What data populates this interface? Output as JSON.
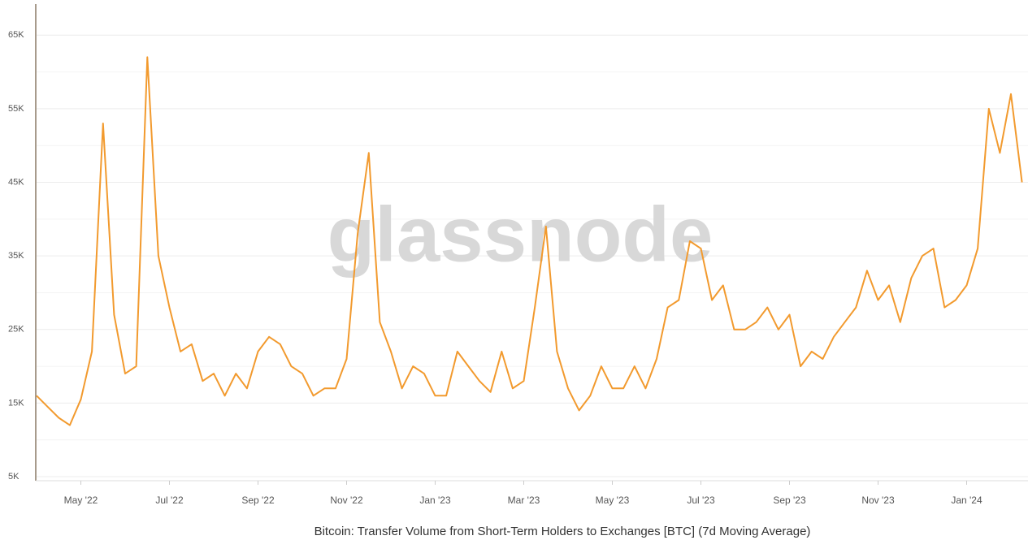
{
  "chart_data": {
    "type": "line",
    "title": "Bitcoin: Transfer Volume from Short-Term Holders to Exchanges [BTC] (7d Moving Average)",
    "watermark": "glassnode",
    "categories": [
      null,
      null,
      null,
      null,
      "May '22",
      null,
      null,
      null,
      null,
      null,
      null,
      null,
      "Jul '22",
      null,
      null,
      null,
      null,
      null,
      null,
      null,
      "Sep '22",
      null,
      null,
      null,
      null,
      null,
      null,
      null,
      "Nov '22",
      null,
      null,
      null,
      null,
      null,
      null,
      null,
      "Jan '23",
      null,
      null,
      null,
      null,
      null,
      null,
      null,
      "Mar '23",
      null,
      null,
      null,
      null,
      null,
      null,
      null,
      "May '23",
      null,
      null,
      null,
      null,
      null,
      null,
      null,
      "Jul '23",
      null,
      null,
      null,
      null,
      null,
      null,
      null,
      "Sep '23",
      null,
      null,
      null,
      null,
      null,
      null,
      null,
      "Nov '23",
      null,
      null,
      null,
      null,
      null,
      null,
      null,
      "Jan '24",
      null,
      null,
      null,
      null,
      null
    ],
    "series": [
      {
        "name": "Transfer Volume (7d MA)",
        "color": "#f29a2e",
        "values": [
          16000,
          14500,
          13000,
          12000,
          15500,
          22000,
          53000,
          27000,
          19000,
          20000,
          62000,
          35000,
          28000,
          22000,
          23000,
          18000,
          19000,
          16000,
          19000,
          17000,
          22000,
          24000,
          23000,
          20000,
          19000,
          16000,
          17000,
          17000,
          21000,
          38000,
          49000,
          26000,
          22000,
          17000,
          20000,
          19000,
          16000,
          16000,
          22000,
          20000,
          18000,
          16500,
          22000,
          17000,
          18000,
          28000,
          39000,
          22000,
          17000,
          14000,
          16000,
          20000,
          17000,
          17000,
          20000,
          17000,
          21000,
          28000,
          29000,
          37000,
          36000,
          29000,
          31000,
          25000,
          25000,
          26000,
          28000,
          25000,
          27000,
          20000,
          22000,
          21000,
          24000,
          26000,
          28000,
          33000,
          29000,
          31000,
          26000,
          32000,
          35000,
          36000,
          28000,
          29000,
          31000,
          36000,
          55000,
          49000,
          57000,
          45000
        ]
      }
    ],
    "ylim": [
      5000,
      69000
    ],
    "yticks": [
      {
        "value": 5000,
        "label": "5K"
      },
      {
        "value": 15000,
        "label": "15K"
      },
      {
        "value": 25000,
        "label": "25K"
      },
      {
        "value": 35000,
        "label": "35K"
      },
      {
        "value": 45000,
        "label": "45K"
      },
      {
        "value": 55000,
        "label": "55K"
      },
      {
        "value": 65000,
        "label": "65K"
      }
    ],
    "minor_yticks": [
      10000,
      20000,
      30000,
      40000,
      50000,
      60000
    ],
    "grid": true
  }
}
